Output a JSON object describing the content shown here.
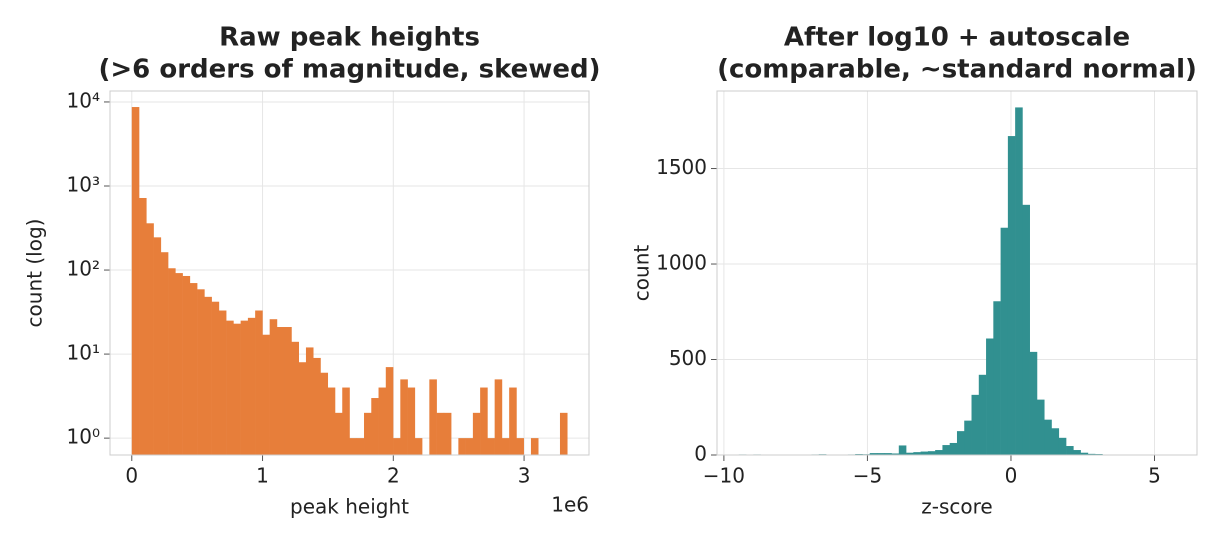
{
  "chart_data": [
    {
      "type": "histogram",
      "title": [
        "Raw peak heights",
        "(>6 orders of magnitude, skewed)"
      ],
      "x_label": "peak height",
      "y_label": "count (log)",
      "x_offset_label": "1e6",
      "color": "#e77e3a",
      "yscale": "log",
      "grid": true,
      "bins": [
        0,
        55500,
        111000,
        166500,
        222000,
        277500,
        333000,
        388500,
        444000,
        499500,
        555000,
        610500,
        666000,
        721500,
        777000,
        832500,
        888000,
        943500,
        999000,
        1054500,
        1110000,
        1165500,
        1221000,
        1276500,
        1332000,
        1387500,
        1443000,
        1498500,
        1554000,
        1609500,
        1665000,
        1720500,
        1776000,
        1831500,
        1887000,
        1942500,
        1998000,
        2053500,
        2109000,
        2164500,
        2220000,
        2275500,
        2331000,
        2386500,
        2442000,
        2497500,
        2553000,
        2608500,
        2664000,
        2719500,
        2775000,
        2830500,
        2886000,
        2941500,
        2997000,
        3052500,
        3108000,
        3163500,
        3219000,
        3274500,
        3330000
      ],
      "values": [
        8700,
        720,
        360,
        245,
        163,
        105,
        92,
        85,
        70,
        59,
        48,
        42,
        33,
        25,
        23,
        25,
        27,
        33,
        17,
        26,
        21,
        21,
        14,
        8,
        12,
        9,
        6,
        4,
        2,
        4,
        1,
        1,
        2,
        3,
        4,
        7,
        1,
        5,
        4,
        1,
        0,
        5,
        2,
        2,
        0,
        1,
        1,
        2,
        4,
        1,
        5,
        1,
        4,
        1,
        0,
        1,
        0,
        0,
        0,
        2
      ],
      "xlim": [
        -166500,
        3496500
      ],
      "xticks": [
        {
          "value": 0,
          "label": "0"
        },
        {
          "value": 1000000,
          "label": "1"
        },
        {
          "value": 2000000,
          "label": "2"
        },
        {
          "value": 3000000,
          "label": "3"
        }
      ],
      "ylim": [
        0.63,
        13500
      ],
      "yticks": [
        {
          "value": 1,
          "label": "10⁰"
        },
        {
          "value": 10,
          "label": "10¹"
        },
        {
          "value": 100,
          "label": "10²"
        },
        {
          "value": 1000,
          "label": "10³"
        },
        {
          "value": 10000,
          "label": "10⁴"
        }
      ]
    },
    {
      "type": "histogram",
      "title": [
        "After log10 + autoscale",
        "(comparable, ~standard normal)"
      ],
      "x_label": "z-score",
      "y_label": "count",
      "color": "#319090",
      "yscale": "linear",
      "grid": true,
      "bins": [
        -9.48,
        -9.2267,
        -8.9734,
        -8.7201,
        -8.4668,
        -8.2135,
        -7.9602,
        -7.7069,
        -7.4536,
        -7.2003,
        -6.947,
        -6.6937,
        -6.4404,
        -6.1871,
        -5.9338,
        -5.6805,
        -5.4272,
        -5.1739,
        -4.9206,
        -4.6673,
        -4.414,
        -4.1607,
        -3.9074,
        -3.6541,
        -3.4008,
        -3.1475,
        -2.8942,
        -2.6409,
        -2.3876,
        -2.1343,
        -1.881,
        -1.6277,
        -1.3744,
        -1.1211,
        -0.8678,
        -0.6145,
        -0.3612,
        -0.1079,
        0.1454,
        0.3987,
        0.652,
        0.9053,
        1.1586,
        1.4119,
        1.6652,
        1.9185,
        2.1718,
        2.4251,
        2.6784,
        2.9317,
        3.185,
        3.4383,
        3.6916,
        3.9449,
        4.1982,
        4.4515,
        4.7048,
        4.9581,
        5.2114,
        5.4647,
        5.718
      ],
      "values": [
        3,
        0,
        3,
        0,
        1,
        0,
        0,
        0,
        2,
        1,
        3,
        4,
        1,
        2,
        1,
        3,
        5,
        4,
        10,
        10,
        10,
        8,
        50,
        12,
        15,
        18,
        20,
        26,
        52,
        63,
        125,
        180,
        315,
        420,
        610,
        805,
        1190,
        1670,
        1820,
        1310,
        540,
        290,
        185,
        140,
        90,
        47,
        26,
        12,
        6,
        5,
        1,
        0,
        0,
        1,
        0,
        0,
        0,
        0,
        0,
        1
      ],
      "xlim": [
        -10.24,
        6.48
      ],
      "xticks": [
        {
          "value": -10,
          "label": "−10"
        },
        {
          "value": -5,
          "label": "−5"
        },
        0,
        5
      ],
      "ylim": [
        0,
        1906
      ],
      "yticks": [
        0,
        500,
        1000,
        1500
      ]
    }
  ]
}
